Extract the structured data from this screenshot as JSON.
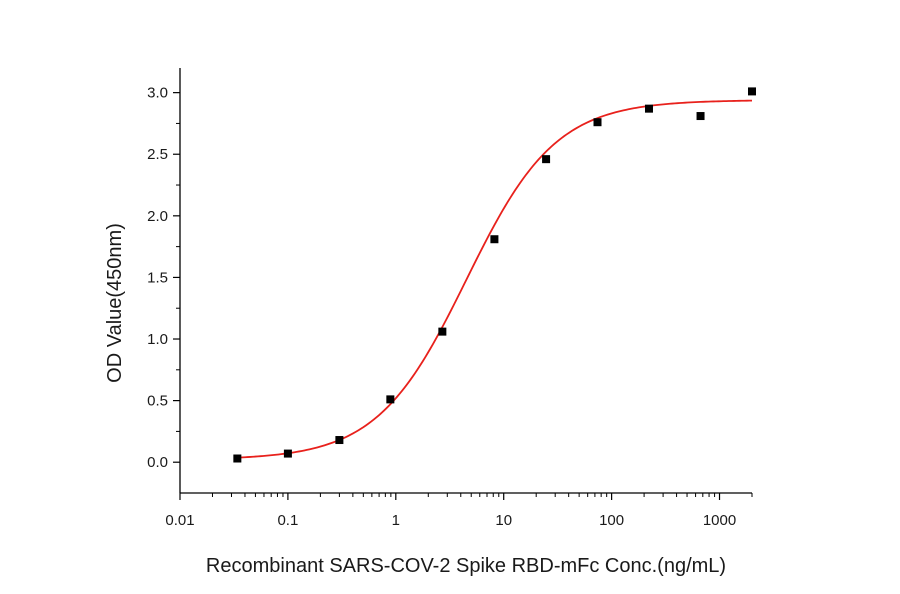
{
  "chart_data": {
    "type": "scatter",
    "title": "",
    "xlabel": "Recombinant SARS-COV-2 Spike RBD-mFc  Conc.(ng/mL)",
    "ylabel": "OD Value(450nm)",
    "xscale": "log",
    "xlim": [
      0.01,
      2000
    ],
    "ylim": [
      -0.25,
      3.2
    ],
    "xticks": [
      0.01,
      0.1,
      1,
      10,
      100,
      1000
    ],
    "xtick_labels": [
      "0.01",
      "0.1",
      "1",
      "10",
      "100",
      "1000"
    ],
    "yticks": [
      0.0,
      0.5,
      1.0,
      1.5,
      2.0,
      2.5,
      3.0
    ],
    "ytick_labels": [
      "0.0",
      "0.5",
      "1.0",
      "1.5",
      "2.0",
      "2.5",
      "3.0"
    ],
    "grid": false,
    "legend": "none",
    "series": [
      {
        "marker": "square",
        "color": "#000000",
        "x": [
          0.034,
          0.1,
          0.3,
          0.89,
          2.7,
          8.2,
          24.7,
          74,
          222,
          667,
          2000
        ],
        "y": [
          0.03,
          0.07,
          0.18,
          0.51,
          1.06,
          1.81,
          2.46,
          2.76,
          2.87,
          2.81,
          3.01
        ]
      },
      {
        "type": "line",
        "fit": "four-parameter logistic",
        "color": "#e8211c",
        "params": {
          "bottom": 0.02,
          "top": 2.94,
          "ec50": 4.5,
          "hill": 1.05
        }
      }
    ]
  }
}
